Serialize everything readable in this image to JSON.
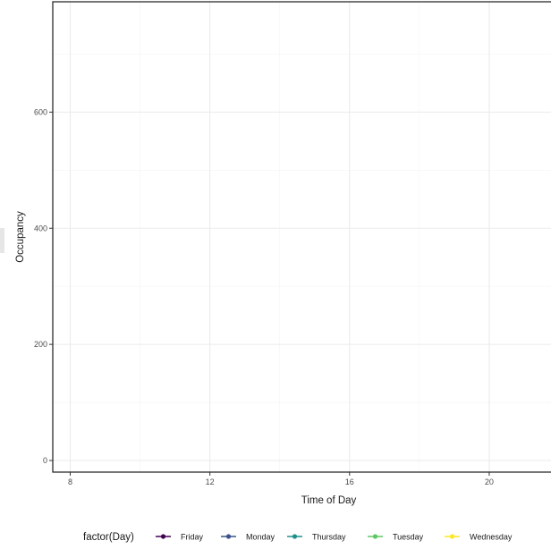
{
  "chart_data": {
    "type": "line",
    "title": "",
    "xlabel": "Time of Day",
    "ylabel": "Occupancy",
    "xlim": [
      7.5,
      22
    ],
    "ylim": [
      -20,
      790
    ],
    "x_ticks": [
      8,
      12,
      16,
      20
    ],
    "y_ticks": [
      0,
      200,
      400,
      600
    ],
    "x_minor": [
      10,
      14,
      18,
      22
    ],
    "y_minor": [
      100,
      300,
      500,
      700
    ],
    "grid": true,
    "legend": {
      "title": "factor(Day)",
      "position": "bottom",
      "entries": [
        {
          "label": "Friday",
          "color": "#440154"
        },
        {
          "label": "Monday",
          "color": "#3b528b"
        },
        {
          "label": "Thursday",
          "color": "#21908c"
        },
        {
          "label": "Tuesday",
          "color": "#5dc863"
        },
        {
          "label": "Wednesday",
          "color": "#fde725"
        }
      ]
    },
    "series": [
      {
        "name": "Friday",
        "x": [],
        "y": []
      },
      {
        "name": "Monday",
        "x": [],
        "y": []
      },
      {
        "name": "Thursday",
        "x": [],
        "y": []
      },
      {
        "name": "Tuesday",
        "x": [],
        "y": []
      },
      {
        "name": "Wednesday",
        "x": [],
        "y": []
      }
    ]
  }
}
